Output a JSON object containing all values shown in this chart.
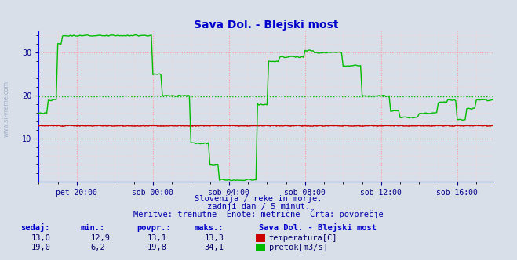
{
  "title": "Sava Dol. - Blejski most",
  "title_color": "#0000cc",
  "bg_color": "#d8dfe8",
  "grid_color_major": "#ff9999",
  "grid_color_minor": "#ffcccc",
  "axis_color": "#0000ff",
  "tick_color": "#000088",
  "text_color": "#0000aa",
  "temp_color": "#cc0000",
  "flow_color": "#00bb00",
  "temp_avg": 13.1,
  "flow_avg": 19.8,
  "temp_min": 12.9,
  "temp_max": 13.3,
  "flow_min": 6.2,
  "flow_max": 34.1,
  "temp_current": 13.0,
  "flow_current": 19.0,
  "ylim": [
    0,
    35
  ],
  "yticks": [
    10,
    20,
    30
  ],
  "xtick_labels": [
    "pet 20:00",
    "sob 00:00",
    "sob 04:00",
    "sob 08:00",
    "sob 12:00",
    "sob 16:00"
  ],
  "xtick_positions": [
    24,
    72,
    120,
    168,
    216,
    264
  ],
  "n_points": 288,
  "footer_line1": "Slovenija / reke in morje.",
  "footer_line2": "zadnji dan / 5 minut.",
  "footer_line3": "Meritve: trenutne  Enote: metrične  Črta: povprečje",
  "table_headers": [
    "sedaj:",
    "min.:",
    "povpr.:",
    "maks.:"
  ],
  "legend_title": "Sava Dol. - Blejski most",
  "legend_temp_label": "temperatura[C]",
  "legend_flow_label": "pretok[m3/s]",
  "watermark": "www.si-vreme.com"
}
